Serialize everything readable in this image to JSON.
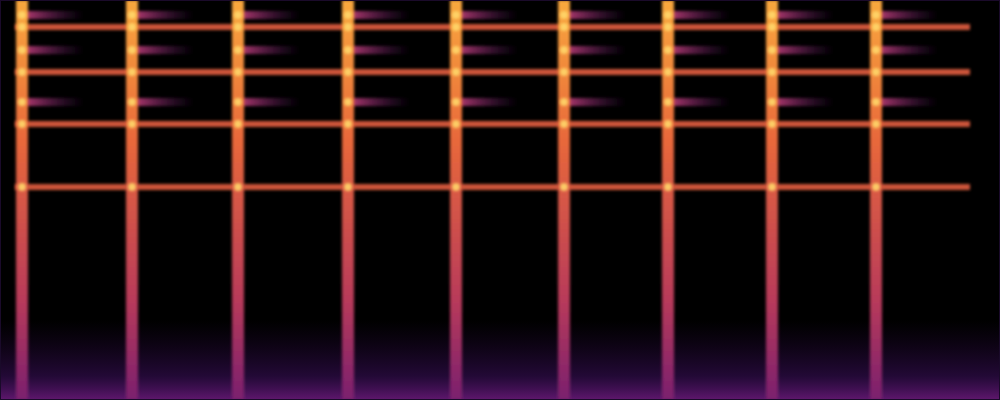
{
  "chart_data": {
    "type": "spectrogram",
    "tick_labels": false,
    "xlim": [
      0,
      100
    ],
    "ylim": [
      0,
      100
    ],
    "x": [
      2.2,
      13.2,
      23.8,
      34.8,
      45.6,
      56.4,
      66.8,
      77.2,
      87.6
    ],
    "harmonics": [
      93.25,
      82,
      69,
      53.25
    ],
    "bands_x": [
      1.5,
      97
    ],
    "echoes": [
      96.25,
      87.5,
      74.5
    ]
  }
}
